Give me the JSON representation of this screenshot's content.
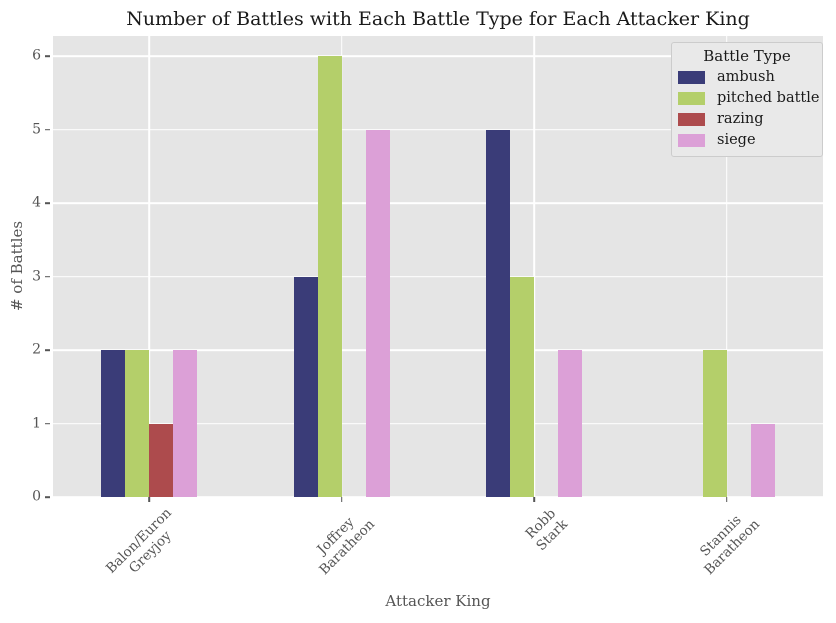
{
  "chart_data": {
    "type": "bar",
    "title": "Number of Battles with Each Battle Type for Each Attacker King",
    "xlabel": "Attacker King",
    "ylabel": "# of Battles",
    "legend_title": "Battle Type",
    "legend_position": "upper right",
    "grid": true,
    "categories": [
      "Balon/Euron Greyjoy",
      "Joffrey Baratheon",
      "Robb Stark",
      "Stannis Baratheon"
    ],
    "categories_display_lines": [
      [
        "Balon/Euron",
        "Greyjoy"
      ],
      [
        "Joffrey",
        "Baratheon"
      ],
      [
        "Robb",
        "Stark"
      ],
      [
        "Stannis",
        "Baratheon"
      ]
    ],
    "series": [
      {
        "name": "ambush",
        "color": "#3a3c78",
        "values": [
          2,
          3,
          5,
          0
        ]
      },
      {
        "name": "pitched battle",
        "color": "#b4cf6a",
        "values": [
          2,
          6,
          3,
          2
        ]
      },
      {
        "name": "razing",
        "color": "#ad4b4d",
        "values": [
          1,
          0,
          0,
          0
        ]
      },
      {
        "name": "siege",
        "color": "#dca0d7",
        "values": [
          2,
          5,
          2,
          1
        ]
      }
    ],
    "yticks": [
      0,
      1,
      2,
      3,
      4,
      5,
      6
    ],
    "ylim": [
      0,
      6.28
    ]
  },
  "colors": {
    "figure_bg": "#ffffff",
    "plot_bg": "#e5e5e5",
    "gridline": "#ffffff",
    "tick_text": "#555555",
    "title_text": "#1a1a1a",
    "legend_bg": "#e9e9e9",
    "legend_border": "#cccccc"
  }
}
